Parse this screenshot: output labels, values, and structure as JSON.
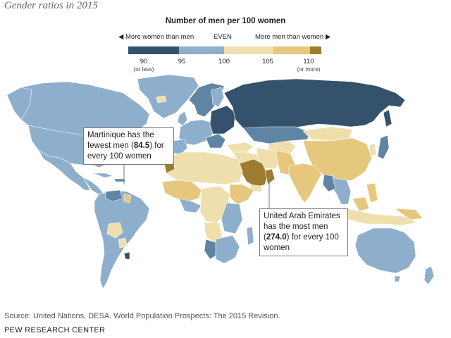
{
  "title": "Gender ratios in 2015",
  "legend": {
    "title": "Number of men per 100 women",
    "left_label": "More women than men",
    "center_label": "EVEN",
    "right_label": "More men than women",
    "ticks": [
      {
        "value": "90",
        "sub": "(or less)"
      },
      {
        "value": "95",
        "sub": ""
      },
      {
        "value": "100",
        "sub": ""
      },
      {
        "value": "105",
        "sub": ""
      },
      {
        "value": "110",
        "sub": "(or more)"
      }
    ],
    "colors": {
      "dark_blue": "#34526c",
      "mid_blue": "#5f84a4",
      "light_blue": "#8dafcb",
      "light_tan": "#efdfad",
      "mid_tan": "#e5c77e",
      "dark_gold": "#9d7d2d"
    }
  },
  "callouts": {
    "martinique": {
      "pre": "Martinique has the fewest men (",
      "value": "84.5",
      "post": ") for every 100 women"
    },
    "uae": {
      "pre": "United Arab Emirates has the most men (",
      "value": "274.0",
      "post": ") for every 100 women"
    }
  },
  "source": "Source: United Nations, DESA. World Population Prospects: The 2015 Revision.",
  "brand": "PEW RESEARCH CENTER"
}
